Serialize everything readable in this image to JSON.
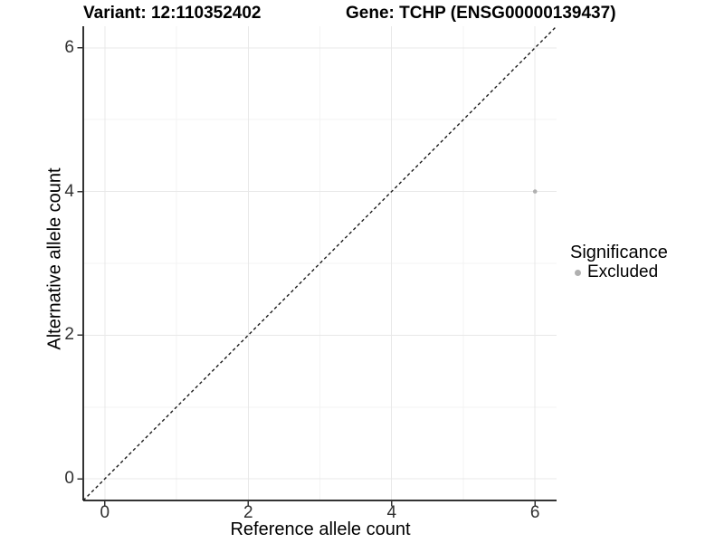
{
  "header": {
    "variant_title": "Variant: 12:110352402",
    "gene_title": "Gene: TCHP (ENSG00000139437)"
  },
  "axes": {
    "x_title": "Reference allele count",
    "y_title": "Alternative allele count"
  },
  "legend": {
    "title": "Significance",
    "items": [
      {
        "label": "Excluded",
        "color": "#b0b0b0",
        "marker": "circle"
      }
    ]
  },
  "chart_data": {
    "type": "scatter",
    "title": "Variant: 12:110352402   Gene: TCHP (ENSG00000139437)",
    "xlabel": "Reference allele count",
    "ylabel": "Alternative allele count",
    "xlim": [
      -0.3,
      6.3
    ],
    "ylim": [
      -0.3,
      6.3
    ],
    "x_ticks": [
      0,
      2,
      4,
      6
    ],
    "y_ticks": [
      0,
      2,
      4,
      6
    ],
    "x_minor_ticks": [
      1,
      3,
      5
    ],
    "y_minor_ticks": [
      1,
      3,
      5
    ],
    "grid": "major+minor",
    "legend_position": "right",
    "series": [
      {
        "name": "Excluded",
        "color": "#b0b0b0",
        "points": [
          {
            "x": 6,
            "y": 4
          }
        ]
      }
    ],
    "reference_line": {
      "type": "identity (y = x)",
      "from": [
        -0.3,
        -0.3
      ],
      "to": [
        6.3,
        6.3
      ],
      "style": "dashed",
      "color": "#1a1a1a"
    },
    "style": {
      "grid_major_color": "#e8e8e8",
      "grid_minor_color": "#f3f3f3",
      "axis_line_color": "#333333",
      "tick_label_color": "#303030",
      "panel_background": "#ffffff"
    }
  }
}
